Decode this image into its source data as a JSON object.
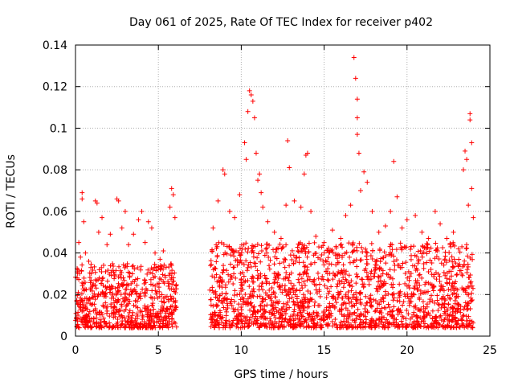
{
  "chart_data": {
    "type": "scatter",
    "title": "Day 061 of 2025, Rate Of TEC Index for receiver p402",
    "xlabel": "GPS time / hours",
    "ylabel": "ROTI / TECUs",
    "xlim": [
      0,
      25
    ],
    "ylim": [
      0,
      0.14
    ],
    "xticks": [
      0,
      5,
      10,
      15,
      20,
      25
    ],
    "xtick_labels": [
      "0",
      "5",
      "10",
      "15",
      "20",
      "25"
    ],
    "yticks": [
      0,
      0.02,
      0.04,
      0.06,
      0.08,
      0.1,
      0.12,
      0.14
    ],
    "ytick_labels": [
      "0",
      "0.02",
      "0.04",
      "0.06",
      "0.08",
      "0.1",
      "0.12",
      "0.14"
    ],
    "grid": true,
    "marker": "+",
    "color": "#ff0000",
    "data_gap_hours": [
      6.1,
      8.1
    ],
    "series": [
      {
        "name": "ROTI",
        "points": [
          [
            0.1,
            0.028
          ],
          [
            0.2,
            0.045
          ],
          [
            0.3,
            0.038
          ],
          [
            0.4,
            0.069
          ],
          [
            0.4,
            0.066
          ],
          [
            0.5,
            0.055
          ],
          [
            0.6,
            0.04
          ],
          [
            0.8,
            0.036
          ],
          [
            1.2,
            0.065
          ],
          [
            1.3,
            0.064
          ],
          [
            1.4,
            0.05
          ],
          [
            1.6,
            0.057
          ],
          [
            1.9,
            0.044
          ],
          [
            2.1,
            0.049
          ],
          [
            2.5,
            0.066
          ],
          [
            2.6,
            0.065
          ],
          [
            2.8,
            0.052
          ],
          [
            3.0,
            0.06
          ],
          [
            3.2,
            0.044
          ],
          [
            3.5,
            0.049
          ],
          [
            3.8,
            0.056
          ],
          [
            4.0,
            0.06
          ],
          [
            4.2,
            0.045
          ],
          [
            4.4,
            0.055
          ],
          [
            4.6,
            0.052
          ],
          [
            4.8,
            0.04
          ],
          [
            5.1,
            0.037
          ],
          [
            5.3,
            0.041
          ],
          [
            5.7,
            0.062
          ],
          [
            5.8,
            0.071
          ],
          [
            5.9,
            0.068
          ],
          [
            6.0,
            0.057
          ],
          [
            8.3,
            0.052
          ],
          [
            8.6,
            0.065
          ],
          [
            8.9,
            0.08
          ],
          [
            9.0,
            0.078
          ],
          [
            9.3,
            0.06
          ],
          [
            9.6,
            0.057
          ],
          [
            9.9,
            0.068
          ],
          [
            10.2,
            0.093
          ],
          [
            10.3,
            0.085
          ],
          [
            10.4,
            0.108
          ],
          [
            10.5,
            0.118
          ],
          [
            10.6,
            0.116
          ],
          [
            10.7,
            0.113
          ],
          [
            10.8,
            0.105
          ],
          [
            10.9,
            0.088
          ],
          [
            11.0,
            0.075
          ],
          [
            11.1,
            0.078
          ],
          [
            11.2,
            0.069
          ],
          [
            11.3,
            0.062
          ],
          [
            11.6,
            0.055
          ],
          [
            12.0,
            0.05
          ],
          [
            12.4,
            0.047
          ],
          [
            12.7,
            0.063
          ],
          [
            12.8,
            0.094
          ],
          [
            12.9,
            0.081
          ],
          [
            13.2,
            0.065
          ],
          [
            13.6,
            0.062
          ],
          [
            13.8,
            0.078
          ],
          [
            13.9,
            0.087
          ],
          [
            14.0,
            0.088
          ],
          [
            14.2,
            0.06
          ],
          [
            14.5,
            0.048
          ],
          [
            15.0,
            0.045
          ],
          [
            15.5,
            0.051
          ],
          [
            16.0,
            0.047
          ],
          [
            16.3,
            0.058
          ],
          [
            16.6,
            0.063
          ],
          [
            16.8,
            0.134
          ],
          [
            16.9,
            0.124
          ],
          [
            17.0,
            0.114
          ],
          [
            17.0,
            0.105
          ],
          [
            17.0,
            0.097
          ],
          [
            17.1,
            0.088
          ],
          [
            17.2,
            0.07
          ],
          [
            17.4,
            0.079
          ],
          [
            17.6,
            0.074
          ],
          [
            17.9,
            0.06
          ],
          [
            18.3,
            0.05
          ],
          [
            18.7,
            0.053
          ],
          [
            19.0,
            0.06
          ],
          [
            19.2,
            0.084
          ],
          [
            19.4,
            0.067
          ],
          [
            19.7,
            0.052
          ],
          [
            20.0,
            0.056
          ],
          [
            20.5,
            0.058
          ],
          [
            20.9,
            0.05
          ],
          [
            21.3,
            0.047
          ],
          [
            21.7,
            0.06
          ],
          [
            22.0,
            0.054
          ],
          [
            22.4,
            0.047
          ],
          [
            22.8,
            0.05
          ],
          [
            23.1,
            0.042
          ],
          [
            23.4,
            0.08
          ],
          [
            23.5,
            0.089
          ],
          [
            23.6,
            0.085
          ],
          [
            23.7,
            0.063
          ],
          [
            23.8,
            0.107
          ],
          [
            23.8,
            0.104
          ],
          [
            23.9,
            0.093
          ],
          [
            23.9,
            0.071
          ],
          [
            24.0,
            0.057
          ]
        ],
        "dense_band": {
          "note": "Thousands of densely packed samples between roughly 0.005 and 0.04 TECU covering 0–6.1 h and 8.1–24 h",
          "segments": [
            {
              "x_range": [
                0.0,
                6.1
              ],
              "y_range": [
                0.004,
                0.035
              ]
            },
            {
              "x_range": [
                8.1,
                24.0
              ],
              "y_range": [
                0.004,
                0.045
              ]
            }
          ]
        }
      }
    ]
  }
}
